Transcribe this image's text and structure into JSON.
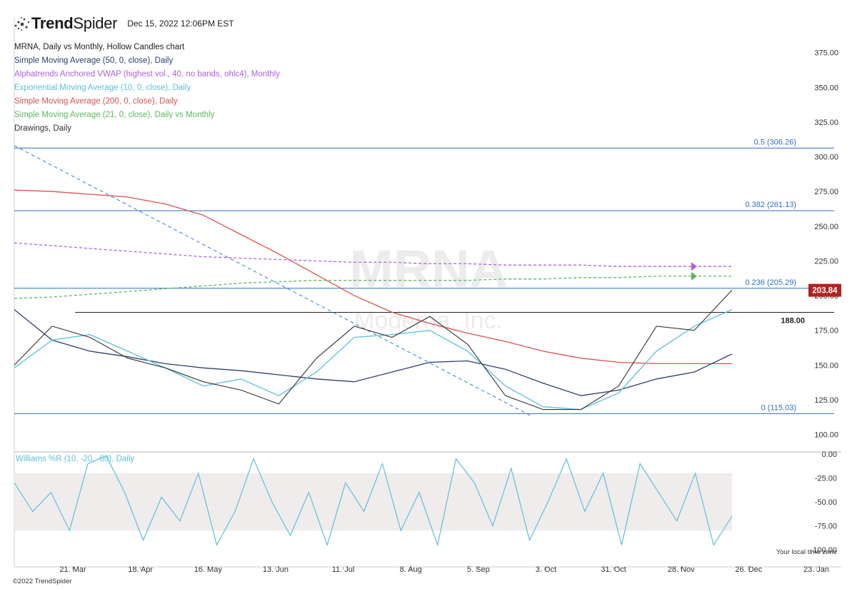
{
  "header": {
    "brand_prefix": "Trend",
    "brand_suffix": "Spider",
    "timestamp": "Dec 15, 2022 12:06PM EST",
    "copyright": "©2022 TrendSpider",
    "local_tz": "Your local time zone"
  },
  "legend": [
    {
      "text": "MRNA, Daily vs Monthly, Hollow Candles chart",
      "color": "#222222"
    },
    {
      "text": "Simple Moving Average (50, 0, close), Daily",
      "color": "#2e3f70"
    },
    {
      "text": "Alphatrends Anchored VWAP (highest vol., 40, no bands, ohlc4), Monthly",
      "color": "#b05fe0"
    },
    {
      "text": "Exponential Moving Average (10, 0, close), Daily",
      "color": "#5bc0de"
    },
    {
      "text": "Simple Moving Average (200, 0, close), Daily",
      "color": "#d9534f"
    },
    {
      "text": "Simple Moving Average (21, 0, close), Daily vs Monthly",
      "color": "#5cb85c"
    },
    {
      "text": "Drawings, Daily",
      "color": "#333333"
    }
  ],
  "watermark": {
    "symbol": "MRNA",
    "company": "Moderna, Inc."
  },
  "chart_data": [
    {
      "type": "line",
      "title": "MRNA, Daily vs Monthly, Hollow Candles chart",
      "y_ticks": [
        100,
        125,
        150,
        175,
        200,
        225,
        250,
        275,
        300,
        325,
        350,
        375
      ],
      "y_tick_labels": [
        "100.00",
        "125.00",
        "150.00",
        "175.00",
        "200.00",
        "225.00",
        "250.00",
        "275.00",
        "300.00",
        "325.00",
        "350.00",
        "375.00"
      ],
      "ylim": [
        88,
        400
      ],
      "x_ticks": [
        "21. Mar",
        "18. Apr",
        "16. May",
        "13. Jun",
        "11. Jul",
        "8. Aug",
        "5. Sep",
        "3. Oct",
        "31. Oct",
        "28. Nov",
        "26. Dec",
        "23. Jan"
      ],
      "last_price": {
        "value": 203.84,
        "label": "203.84"
      },
      "fib_levels": [
        {
          "value": 306.26,
          "label": "0.5 (306.26)"
        },
        {
          "value": 261.13,
          "label": "0.382 (261.13)"
        },
        {
          "value": 205.29,
          "label": "0.236 (205.29)"
        },
        {
          "value": 115.03,
          "label": "0 (115.03)"
        }
      ],
      "horizontal_line": {
        "value": 188.0,
        "label": "188.00"
      },
      "trendline": {
        "start": 308,
        "end": 113
      },
      "series": [
        {
          "name": "Simple Moving Average (200, 0, close), Daily",
          "color": "#d9534f",
          "values": [
            276,
            275,
            273,
            271,
            266,
            258,
            244,
            230,
            215,
            200,
            188,
            180,
            173,
            167,
            160,
            155,
            152,
            151,
            151,
            151
          ]
        },
        {
          "name": "Alphatrends Anchored VWAP (highest vol., 40, no bands, ohlc4), Monthly",
          "color": "#b05fe0",
          "values": [
            238,
            236,
            234,
            232,
            230,
            228,
            227,
            226,
            225,
            224,
            224,
            223,
            223,
            222,
            222,
            222,
            221,
            221,
            221,
            221
          ]
        },
        {
          "name": "Simple Moving Average (21, 0, close), Daily vs Monthly",
          "color": "#5cb85c",
          "values": [
            198,
            199,
            201,
            203,
            205,
            207,
            209,
            210,
            211,
            211,
            211,
            211,
            211,
            212,
            212,
            213,
            213,
            214,
            214,
            214
          ]
        },
        {
          "name": "Simple Moving Average (50, 0, close), Daily",
          "color": "#2e3f70",
          "values": [
            190,
            168,
            160,
            156,
            151,
            148,
            146,
            143,
            140,
            138,
            145,
            152,
            153,
            147,
            137,
            128,
            132,
            140,
            145,
            158
          ]
        },
        {
          "name": "Exponential Moving Average (10, 0, close), Daily",
          "color": "#5bc0de",
          "values": [
            148,
            168,
            172,
            160,
            148,
            135,
            140,
            128,
            145,
            170,
            172,
            175,
            160,
            135,
            120,
            118,
            130,
            160,
            178,
            190
          ]
        },
        {
          "name": "Close",
          "color": "#333333",
          "values": [
            150,
            178,
            170,
            155,
            148,
            138,
            132,
            122,
            155,
            178,
            170,
            185,
            165,
            128,
            118,
            118,
            135,
            178,
            175,
            204
          ]
        }
      ]
    },
    {
      "type": "line",
      "title": "Williams %R (10, -20, -80), Daily",
      "y_ticks": [
        0,
        -25,
        -50,
        -75,
        -100
      ],
      "y_tick_labels": [
        "0.00",
        "-25.00",
        "-50.00",
        "-75.00",
        "-100.00"
      ],
      "ylim": [
        -100,
        0
      ],
      "band": [
        -20,
        -80
      ],
      "series": [
        {
          "name": "Williams %R",
          "color": "#5bc0de",
          "values": [
            -30,
            -60,
            -40,
            -80,
            -10,
            -2,
            -40,
            -90,
            -45,
            -70,
            -20,
            -95,
            -60,
            -5,
            -50,
            -85,
            -40,
            -95,
            -30,
            -60,
            -10,
            -80,
            -40,
            -95,
            -5,
            -30,
            -75,
            -15,
            -90,
            -50,
            -5,
            -60,
            -20,
            -95,
            -10,
            -40,
            -70,
            -20,
            -95,
            -65
          ]
        }
      ]
    }
  ]
}
